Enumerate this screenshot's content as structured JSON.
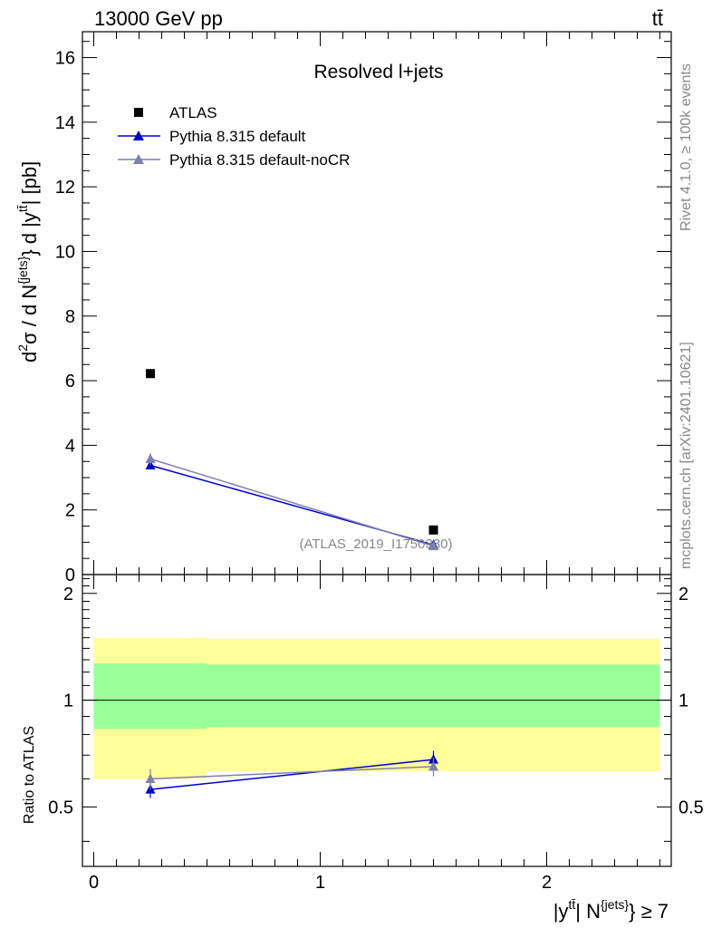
{
  "header": {
    "energy_label": "13000 GeV pp",
    "process_label": "tt̄"
  },
  "side_labels": {
    "rivet": "Rivet 4.1.0, ≥ 100k events",
    "mcplots": "mcplots.cern.ch [arXiv:2401.10621]"
  },
  "colors": {
    "atlas": "#000000",
    "default": "#0000cc",
    "nocr": "#7f7fb2",
    "band_inner": "#99ff99",
    "band_outer": "#ffff99"
  },
  "chart_data": [
    {
      "type": "scatter",
      "panel": "main",
      "title": "Resolved l+jets",
      "watermark": "(ATLAS_2019_I1750330)",
      "ylabel_main": "d²σ / d N{jets} d |ytt̄| [pb]",
      "ylim": [
        0,
        16.8
      ],
      "yticks": [
        0,
        2,
        4,
        6,
        8,
        10,
        12,
        14,
        16
      ],
      "ytick_labels": [
        "0",
        "2",
        "4",
        "6",
        "8",
        "10",
        "12",
        "14",
        "16"
      ],
      "xlim": [
        -0.05,
        2.55
      ],
      "x": [
        0.25,
        1.5
      ],
      "series": [
        {
          "name": "ATLAS",
          "marker": "square",
          "values": [
            6.22,
            1.38
          ],
          "errors": [
            0.08,
            0.05
          ]
        },
        {
          "name": "Pythia 8.315 default",
          "marker": "triangle",
          "values": [
            3.38,
            0.92
          ],
          "errors": [
            0.12,
            0.06
          ]
        },
        {
          "name": "Pythia 8.315 default-noCR",
          "marker": "triangle",
          "values": [
            3.58,
            0.88
          ],
          "errors": [
            0.18,
            0.06
          ]
        }
      ],
      "legend": [
        "ATLAS",
        "Pythia 8.315 default",
        "Pythia 8.315 default-noCR"
      ]
    },
    {
      "type": "scatter",
      "panel": "ratio",
      "ylabel": "Ratio to ATLAS",
      "ylim": [
        0.34,
        2.26
      ],
      "yticks": [
        0.5,
        1,
        2
      ],
      "ytick_labels": [
        "0.5",
        "1",
        "2"
      ],
      "xlim": [
        -0.05,
        2.55
      ],
      "xticks": [
        0,
        1,
        2
      ],
      "xtick_labels": [
        "0",
        "1",
        "2"
      ],
      "xlabel": "|ytt̄| N{jets} ≥ 7",
      "x": [
        0.25,
        1.5
      ],
      "bands": [
        {
          "x_range": [
            0,
            0.5
          ],
          "inner": [
            0.83,
            1.27
          ],
          "outer": [
            0.6,
            1.5
          ]
        },
        {
          "x_range": [
            0.5,
            2.5
          ],
          "inner": [
            0.84,
            1.26
          ],
          "outer": [
            0.63,
            1.49
          ]
        }
      ],
      "series": [
        {
          "name": "Pythia 8.315 default",
          "values": [
            0.56,
            0.68
          ],
          "errors": [
            0.03,
            0.04
          ]
        },
        {
          "name": "Pythia 8.315 default-noCR",
          "values": [
            0.6,
            0.65
          ],
          "errors": [
            0.04,
            0.04
          ]
        }
      ]
    }
  ]
}
